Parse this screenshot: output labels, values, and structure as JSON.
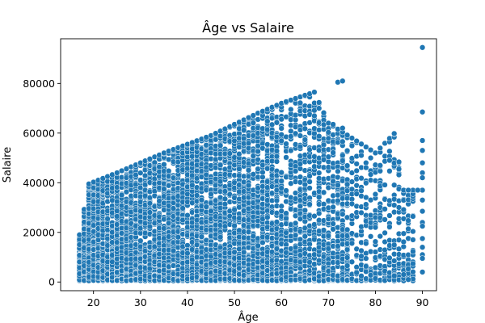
{
  "chart_data": {
    "type": "scatter",
    "title": "Âge vs Salaire",
    "xlabel": "Âge",
    "ylabel": "Salaire",
    "xlim": [
      13,
      93
    ],
    "ylim": [
      -3500,
      98000
    ],
    "xticks": [
      20,
      30,
      40,
      50,
      60,
      70,
      80,
      90
    ],
    "yticks": [
      0,
      20000,
      40000,
      60000,
      80000
    ],
    "xtick_labels": [
      "20",
      "30",
      "40",
      "50",
      "60",
      "70",
      "80",
      "90"
    ],
    "ytick_labels": [
      "0",
      "20000",
      "40000",
      "60000",
      "80000"
    ],
    "grid": false,
    "marker_color": "#1f77b4",
    "marker_edge_color": "#ffffff",
    "upper_envelope": [
      {
        "x": 17,
        "y": 19000
      },
      {
        "x": 19,
        "y": 39500
      },
      {
        "x": 25,
        "y": 44000
      },
      {
        "x": 35,
        "y": 52000
      },
      {
        "x": 45,
        "y": 59000
      },
      {
        "x": 55,
        "y": 68000
      },
      {
        "x": 60,
        "y": 72000
      },
      {
        "x": 67,
        "y": 76500
      },
      {
        "x": 70,
        "y": 64000
      },
      {
        "x": 75,
        "y": 58000
      },
      {
        "x": 80,
        "y": 52000
      },
      {
        "x": 84,
        "y": 59800
      },
      {
        "x": 86,
        "y": 37000
      },
      {
        "x": 88,
        "y": 37000
      }
    ],
    "points": [
      {
        "x": 90,
        "y": 94500
      },
      {
        "x": 90,
        "y": 68500
      },
      {
        "x": 90,
        "y": 57000
      },
      {
        "x": 90,
        "y": 53000
      },
      {
        "x": 90,
        "y": 48000
      },
      {
        "x": 90,
        "y": 44000
      },
      {
        "x": 90,
        "y": 42000
      },
      {
        "x": 90,
        "y": 37000
      },
      {
        "x": 90,
        "y": 33000
      },
      {
        "x": 90,
        "y": 28500
      },
      {
        "x": 90,
        "y": 24000
      },
      {
        "x": 90,
        "y": 22500
      },
      {
        "x": 90,
        "y": 17500
      },
      {
        "x": 90,
        "y": 14000
      },
      {
        "x": 90,
        "y": 11000
      },
      {
        "x": 90,
        "y": 9500
      },
      {
        "x": 90,
        "y": 4000
      },
      {
        "x": 72,
        "y": 80500
      },
      {
        "x": 73,
        "y": 81000
      },
      {
        "x": 67,
        "y": 76500
      },
      {
        "x": 68,
        "y": 70000
      },
      {
        "x": 71,
        "y": 63500
      },
      {
        "x": 73,
        "y": 62000
      },
      {
        "x": 84,
        "y": 59800
      },
      {
        "x": 87,
        "y": 37000
      },
      {
        "x": 89,
        "y": 37000
      },
      {
        "x": 86,
        "y": 3000
      },
      {
        "x": 87,
        "y": 1000
      },
      {
        "x": 84,
        "y": 2500
      },
      {
        "x": 85,
        "y": 45500
      },
      {
        "x": 83,
        "y": 49000
      },
      {
        "x": 81,
        "y": 47000
      }
    ]
  }
}
